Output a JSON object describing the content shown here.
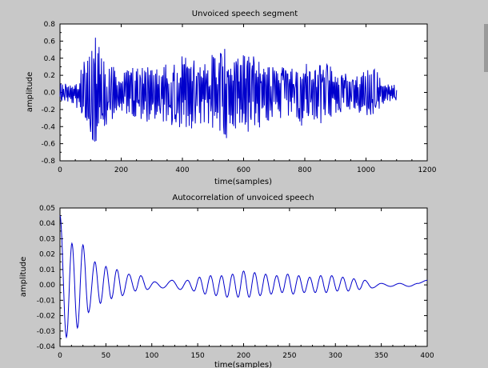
{
  "colors": {
    "background": "#c8c8c8",
    "plot_background": "#ffffff",
    "series": "#0000cc",
    "axis": "#000000"
  },
  "chart_data": [
    {
      "type": "line",
      "title": "Unvoiced speech segment",
      "xlabel": "time(samples)",
      "ylabel": "amplitude",
      "xlim": [
        0,
        1200
      ],
      "ylim": [
        -0.8,
        0.8
      ],
      "xticks": [
        0,
        200,
        400,
        600,
        800,
        1000,
        1200
      ],
      "yticks": [
        -0.8,
        -0.6,
        -0.4,
        -0.2,
        0.0,
        0.2,
        0.4,
        0.6,
        0.8
      ],
      "xtick_labels": [
        "0",
        "200",
        "400",
        "600",
        "800",
        "1000",
        "1200"
      ],
      "ytick_labels": [
        "-0.8",
        "-0.6",
        "-0.4",
        "-0.2",
        "0.0",
        "0.2",
        "0.4",
        "0.6",
        "0.8"
      ],
      "grid": false,
      "series": [
        {
          "x_start": 0,
          "x_end": 1100,
          "n": 560,
          "envelope": [
            [
              0,
              0.1
            ],
            [
              30,
              0.12
            ],
            [
              50,
              0.15
            ],
            [
              80,
              0.38
            ],
            [
              100,
              0.48
            ],
            [
              110,
              0.68
            ],
            [
              125,
              0.58
            ],
            [
              160,
              0.35
            ],
            [
              200,
              0.22
            ],
            [
              240,
              0.3
            ],
            [
              280,
              0.35
            ],
            [
              320,
              0.3
            ],
            [
              360,
              0.4
            ],
            [
              420,
              0.45
            ],
            [
              460,
              0.38
            ],
            [
              500,
              0.45
            ],
            [
              540,
              0.55
            ],
            [
              580,
              0.4
            ],
            [
              620,
              0.5
            ],
            [
              660,
              0.4
            ],
            [
              700,
              0.32
            ],
            [
              760,
              0.3
            ],
            [
              790,
              0.42
            ],
            [
              820,
              0.3
            ],
            [
              860,
              0.4
            ],
            [
              900,
              0.25
            ],
            [
              960,
              0.2
            ],
            [
              1000,
              0.3
            ],
            [
              1030,
              0.28
            ],
            [
              1060,
              0.12
            ],
            [
              1100,
              0.1
            ]
          ]
        }
      ]
    },
    {
      "type": "line",
      "title": "Autocorrelation of unvoiced speech",
      "xlabel": "time(samples)",
      "ylabel": "amplitude",
      "xlim": [
        0,
        400
      ],
      "ylim": [
        -0.04,
        0.05
      ],
      "xticks": [
        0,
        50,
        100,
        150,
        200,
        250,
        300,
        350,
        400
      ],
      "yticks": [
        -0.04,
        -0.03,
        -0.02,
        -0.01,
        0.0,
        0.01,
        0.02,
        0.03,
        0.04,
        0.05
      ],
      "xtick_labels": [
        "0",
        "50",
        "100",
        "150",
        "200",
        "250",
        "300",
        "350",
        "400"
      ],
      "ytick_labels": [
        "-0.04",
        "-0.03",
        "-0.02",
        "-0.01",
        "0.00",
        "0.01",
        "0.02",
        "0.03",
        "0.04",
        "0.05"
      ],
      "grid": false,
      "series": [
        {
          "peaks": [
            [
              0,
              0.045
            ],
            [
              7,
              -0.034
            ],
            [
              13,
              0.027
            ],
            [
              19,
              -0.028
            ],
            [
              25,
              0.026
            ],
            [
              31,
              -0.018
            ],
            [
              38,
              0.015
            ],
            [
              44,
              -0.012
            ],
            [
              50,
              0.012
            ],
            [
              56,
              -0.009
            ],
            [
              62,
              0.01
            ],
            [
              68,
              -0.007
            ],
            [
              75,
              0.007
            ],
            [
              82,
              -0.004
            ],
            [
              88,
              0.006
            ],
            [
              95,
              -0.003
            ],
            [
              103,
              0.002
            ],
            [
              112,
              -0.002
            ],
            [
              122,
              0.003
            ],
            [
              131,
              -0.003
            ],
            [
              139,
              0.003
            ],
            [
              146,
              -0.004
            ],
            [
              152,
              0.005
            ],
            [
              158,
              -0.006
            ],
            [
              164,
              0.006
            ],
            [
              170,
              -0.007
            ],
            [
              176,
              0.006
            ],
            [
              182,
              -0.008
            ],
            [
              188,
              0.007
            ],
            [
              194,
              -0.008
            ],
            [
              200,
              0.009
            ],
            [
              206,
              -0.008
            ],
            [
              212,
              0.008
            ],
            [
              218,
              -0.007
            ],
            [
              224,
              0.007
            ],
            [
              230,
              -0.006
            ],
            [
              236,
              0.006
            ],
            [
              242,
              -0.005
            ],
            [
              248,
              0.007
            ],
            [
              254,
              -0.006
            ],
            [
              260,
              0.006
            ],
            [
              266,
              -0.005
            ],
            [
              272,
              0.005
            ],
            [
              278,
              -0.005
            ],
            [
              284,
              0.006
            ],
            [
              290,
              -0.005
            ],
            [
              296,
              0.006
            ],
            [
              302,
              -0.004
            ],
            [
              308,
              0.005
            ],
            [
              314,
              -0.004
            ],
            [
              320,
              0.004
            ],
            [
              326,
              -0.003
            ],
            [
              332,
              0.003
            ],
            [
              340,
              -0.002
            ],
            [
              350,
              0.001
            ],
            [
              360,
              -0.001
            ],
            [
              370,
              0.001
            ],
            [
              380,
              -0.001
            ],
            [
              390,
              0.001
            ],
            [
              400,
              0.003
            ]
          ]
        }
      ]
    }
  ]
}
